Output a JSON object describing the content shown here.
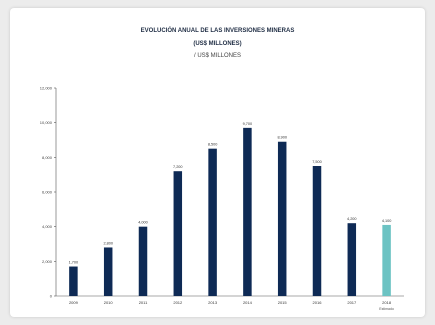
{
  "chart_data": {
    "type": "bar",
    "title": "EVOLUCIÓN ANUAL DE LAS INVERSIONES MINERAS",
    "subtitle": "(US$ MILLONES)",
    "unit_note": "/ US$ MILLONES",
    "categories": [
      "2009",
      "2010",
      "2011",
      "2012",
      "2013",
      "2014",
      "2015",
      "2016",
      "2017",
      "2018"
    ],
    "values": [
      1700,
      2800,
      4000,
      7200,
      8500,
      9700,
      8900,
      7500,
      4200,
      4100
    ],
    "value_labels": [
      "1,700",
      "2,800",
      "4,000",
      "7,200",
      "8,500",
      "9,700",
      "8,900",
      "7,500",
      "4,200",
      "4,100"
    ],
    "ylim": [
      0,
      12000
    ],
    "yticks": [
      "0",
      "2,000",
      "4,000",
      "6,000",
      "8,000",
      "10,000",
      "12,000"
    ],
    "last_note": "Estimado",
    "colors": {
      "bar": "#0e2a55",
      "last_bar": "#6cc3c3"
    },
    "grid": false
  }
}
